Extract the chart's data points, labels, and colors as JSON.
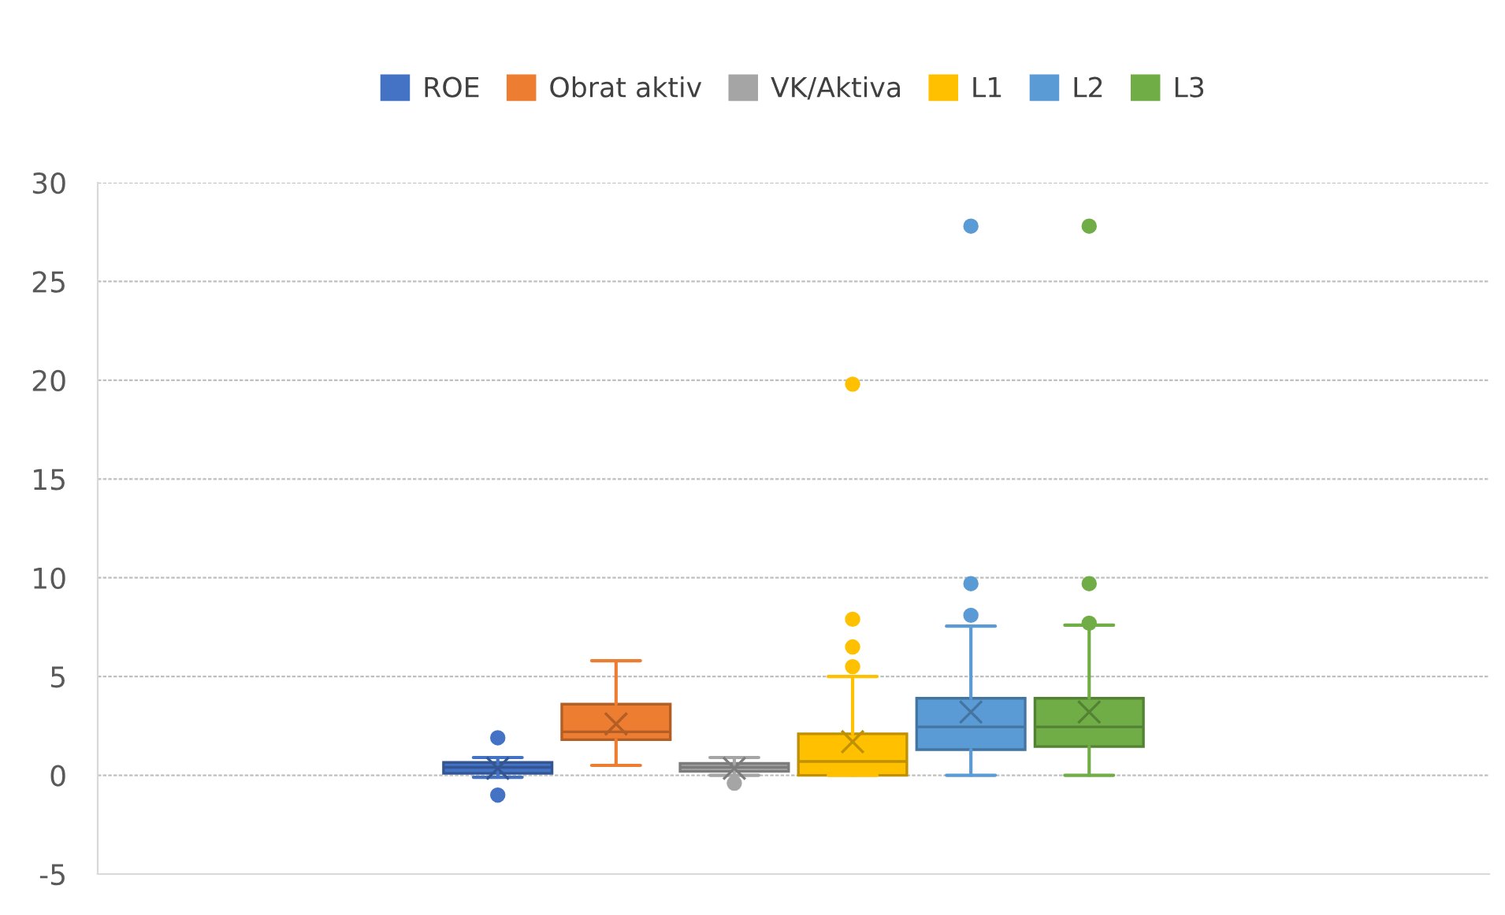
{
  "chart_data": {
    "type": "box",
    "categories": [
      null
    ],
    "series": [
      {
        "name": "ROE",
        "color": "#4472c4",
        "boxes": [
          {
            "low": -0.1,
            "q1": 0.1,
            "median": 0.4,
            "q3": 0.65,
            "high": 0.9,
            "mean": 0.35,
            "outliers": [
              1.9,
              -1.0
            ]
          }
        ]
      },
      {
        "name": "Obrat aktiv",
        "color": "#ed7d31",
        "boxes": [
          {
            "low": 0.5,
            "q1": 1.8,
            "median": 2.2,
            "q3": 3.6,
            "high": 5.8,
            "mean": 2.6
          }
        ]
      },
      {
        "name": "VK/Aktiva",
        "color": "#a5a5a5",
        "boxes": [
          {
            "low": 0.0,
            "q1": 0.2,
            "median": 0.4,
            "q3": 0.6,
            "high": 0.9,
            "mean": 0.35,
            "outliers": [
              -0.4
            ]
          }
        ]
      },
      {
        "name": "L1",
        "color": "#ffc000",
        "boxes": [
          {
            "low": 0.0,
            "q1": 0.0,
            "median": 0.7,
            "q3": 2.1,
            "high": 5.0,
            "mean": 1.7,
            "outliers": [
              5.5,
              6.5,
              7.9,
              19.8
            ]
          }
        ]
      },
      {
        "name": "L2",
        "color": "#5b9bd5",
        "boxes": [
          {
            "low": 0.0,
            "q1": 1.3,
            "median": 2.45,
            "q3": 3.9,
            "high": 7.55,
            "mean": 3.2,
            "outliers": [
              8.1,
              9.7,
              27.8
            ]
          }
        ]
      },
      {
        "name": "L3",
        "color": "#70ad47",
        "boxes": [
          {
            "low": 0.0,
            "q1": 1.45,
            "median": 2.45,
            "q3": 3.9,
            "high": 7.6,
            "mean": 3.2,
            "outliers": [
              7.7,
              9.7,
              27.8
            ]
          }
        ]
      }
    ],
    "ylim": [
      -5,
      30
    ],
    "yticks": [
      -5,
      0,
      5,
      10,
      15,
      20,
      25,
      30
    ],
    "grid": "y",
    "legend": "top"
  }
}
